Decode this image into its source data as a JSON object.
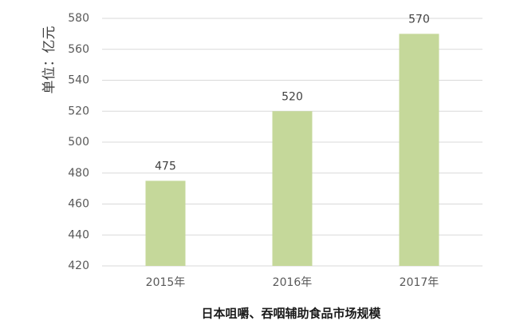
{
  "chart_data": {
    "type": "bar",
    "title": "日本咀嚼、吞咽辅助食品市场规模",
    "y_label": "单位：亿元",
    "categories": [
      "2015年",
      "2016年",
      "2017年"
    ],
    "values": [
      475,
      520,
      570
    ],
    "color": "#c5d89a",
    "ylim": [
      420,
      580
    ],
    "yticks": [
      420,
      440,
      460,
      480,
      500,
      520,
      540,
      560,
      580
    ],
    "grid": true
  }
}
